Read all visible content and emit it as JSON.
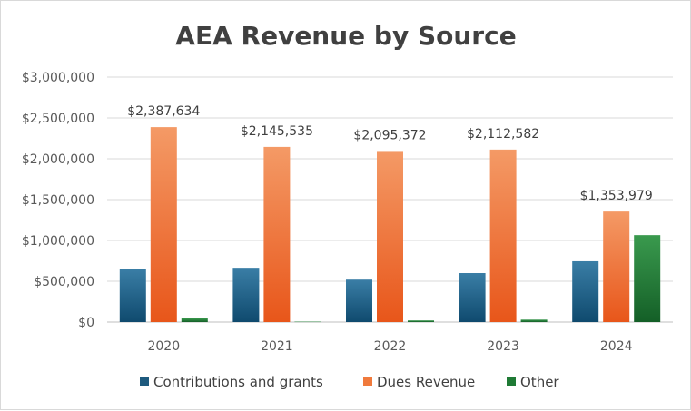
{
  "chart_data": {
    "type": "bar",
    "title": "AEA Revenue by Source",
    "categories": [
      "2020",
      "2021",
      "2022",
      "2023",
      "2024"
    ],
    "series": [
      {
        "name": "Contributions and grants",
        "values": [
          650000,
          665000,
          520000,
          600000,
          745000
        ],
        "color": "#1e5a7e"
      },
      {
        "name": "Dues Revenue",
        "values": [
          2387634,
          2145535,
          2095372,
          2112582,
          1353979
        ],
        "color": "#f07a3c"
      },
      {
        "name": "Other",
        "values": [
          45000,
          5000,
          20000,
          30000,
          1065000
        ],
        "color": "#1f7a35"
      }
    ],
    "data_labels": {
      "series": "Dues Revenue",
      "values": [
        "$2,387,634",
        "$2,145,535",
        "$2,095,372",
        "$2,112,582",
        "$1,353,979"
      ]
    },
    "yticks": [
      "$0",
      "$500,000",
      "$1,000,000",
      "$1,500,000",
      "$2,000,000",
      "$2,500,000",
      "$3,000,000"
    ],
    "ylim": [
      0,
      3000000
    ],
    "grid": true,
    "legend": "bottom"
  }
}
